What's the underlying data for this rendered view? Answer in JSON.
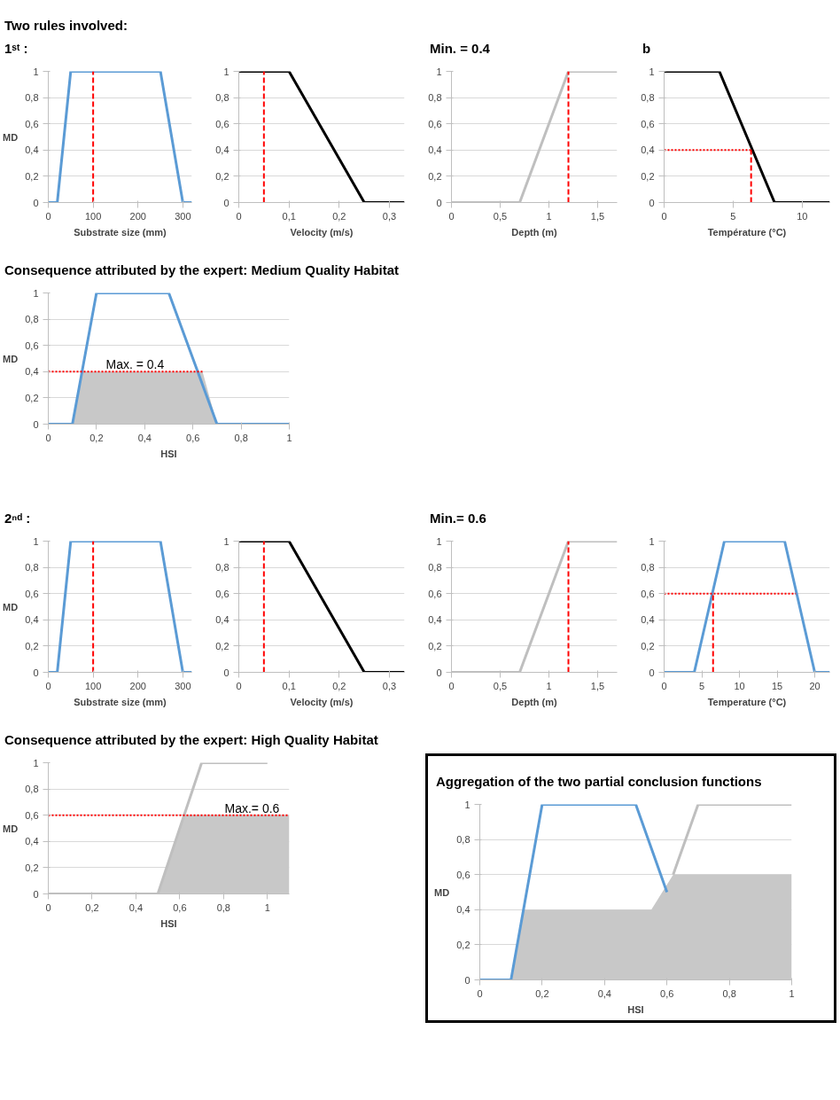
{
  "chart_data": [
    {
      "type": "line",
      "annotations": [
        "Two rules involved:",
        "1ˢᵗ :"
      ],
      "xlabel": "Substrate size (mm)",
      "ylabel": "MD",
      "grid": "y",
      "xlim": [
        0,
        320
      ],
      "ylim": [
        0,
        1
      ],
      "xticks": [
        0,
        100,
        200,
        300
      ],
      "yticks": [
        0,
        {
          "value": 0.2,
          "label": "0,2"
        },
        {
          "value": 0.4,
          "label": "0,4"
        },
        {
          "value": 0.6,
          "label": "0,6"
        },
        {
          "value": 0.8,
          "label": "0,8"
        },
        1
      ],
      "series": [
        {
          "color": "#5b9bd5",
          "x": [
            0,
            20,
            50,
            250,
            300,
            320
          ],
          "values": [
            0,
            0,
            1,
            1,
            0,
            0
          ]
        },
        {
          "color": "#ff0000",
          "line_style": "dashed",
          "x": [
            100,
            100
          ],
          "values": [
            0,
            1
          ]
        }
      ]
    },
    {
      "type": "line",
      "xlabel": "Velocity (m/s)",
      "grid": "y",
      "xlim": [
        0,
        0.33
      ],
      "ylim": [
        0,
        1
      ],
      "xticks": [
        0,
        {
          "value": 0.1,
          "label": "0,1"
        },
        {
          "value": 0.2,
          "label": "0,2"
        },
        {
          "value": 0.3,
          "label": "0,3"
        }
      ],
      "yticks": [
        0,
        {
          "value": 0.2,
          "label": "0,2"
        },
        {
          "value": 0.4,
          "label": "0,4"
        },
        {
          "value": 0.6,
          "label": "0,6"
        },
        {
          "value": 0.8,
          "label": "0,8"
        },
        1
      ],
      "series": [
        {
          "color": "#000000",
          "x": [
            0,
            0.1,
            0.25,
            0.33
          ],
          "values": [
            1,
            1,
            0,
            0
          ]
        },
        {
          "color": "#ff0000",
          "line_style": "dashed",
          "x": [
            0.05,
            0.05
          ],
          "values": [
            0,
            1
          ]
        }
      ]
    },
    {
      "type": "line",
      "annotations": [
        "Min. = 0.4"
      ],
      "xlabel": "Depth (m)",
      "grid": "y",
      "xlim": [
        0,
        1.7
      ],
      "ylim": [
        0,
        1
      ],
      "xticks": [
        0,
        {
          "value": 0.5,
          "label": "0,5"
        },
        1,
        {
          "value": 1.5,
          "label": "1,5"
        }
      ],
      "yticks": [
        0,
        {
          "value": 0.2,
          "label": "0,2"
        },
        {
          "value": 0.4,
          "label": "0,4"
        },
        {
          "value": 0.6,
          "label": "0,6"
        },
        {
          "value": 0.8,
          "label": "0,8"
        },
        1
      ],
      "series": [
        {
          "color": "#bfbfbf",
          "x": [
            0,
            0.7,
            1.2,
            1.7
          ],
          "values": [
            0,
            0,
            1,
            1
          ]
        },
        {
          "color": "#ff0000",
          "line_style": "dashed",
          "x": [
            1.2,
            1.2
          ],
          "values": [
            0,
            1
          ]
        }
      ]
    },
    {
      "type": "line",
      "annotations": [
        "b"
      ],
      "xlabel": "Température (°C)",
      "grid": "y",
      "xlim": [
        0,
        12
      ],
      "ylim": [
        0,
        1
      ],
      "xticks": [
        0,
        5,
        10
      ],
      "yticks": [
        0,
        {
          "value": 0.2,
          "label": "0,2"
        },
        {
          "value": 0.4,
          "label": "0,4"
        },
        {
          "value": 0.6,
          "label": "0,6"
        },
        {
          "value": 0.8,
          "label": "0,8"
        },
        1
      ],
      "series": [
        {
          "color": "#000000",
          "x": [
            0,
            4,
            8,
            12
          ],
          "values": [
            1,
            1,
            0,
            0
          ]
        },
        {
          "color": "#ff0000",
          "line_style": "dotted",
          "x": [
            0,
            6.3
          ],
          "values": [
            0.4,
            0.4
          ]
        },
        {
          "color": "#ff0000",
          "line_style": "dashed",
          "x": [
            6.3,
            6.3
          ],
          "values": [
            0,
            0.4
          ]
        }
      ]
    },
    {
      "type": "line",
      "title": "Consequence attributed by the expert: Medium Quality Habitat",
      "annotations": [
        {
          "text": "Max. = 0.4",
          "x": 0.36,
          "y": 0.4
        }
      ],
      "xlabel": "HSI",
      "ylabel": "MD",
      "grid": "y",
      "xlim": [
        0,
        1
      ],
      "ylim": [
        0,
        1
      ],
      "xticks": [
        0,
        {
          "value": 0.2,
          "label": "0,2"
        },
        {
          "value": 0.4,
          "label": "0,4"
        },
        {
          "value": 0.6,
          "label": "0,6"
        },
        {
          "value": 0.8,
          "label": "0,8"
        },
        1
      ],
      "yticks": [
        0,
        {
          "value": 0.2,
          "label": "0,2"
        },
        {
          "value": 0.4,
          "label": "0,4"
        },
        {
          "value": 0.6,
          "label": "0,6"
        },
        {
          "value": 0.8,
          "label": "0,8"
        },
        1
      ],
      "series": [
        {
          "type": "area",
          "color": "#c8c8c8",
          "x": [
            0.1,
            0.14,
            0.64,
            0.7
          ],
          "values": [
            0,
            0.4,
            0.4,
            0
          ]
        },
        {
          "color": "#5b9bd5",
          "x": [
            0,
            0.1,
            0.2,
            0.5,
            0.7,
            1
          ],
          "values": [
            0,
            0,
            1,
            1,
            0,
            0
          ]
        },
        {
          "color": "#ff0000",
          "line_style": "dotted",
          "x": [
            0,
            0.64
          ],
          "values": [
            0.4,
            0.4
          ]
        }
      ]
    },
    {
      "type": "line",
      "annotations": [
        "2ⁿᵈ :"
      ],
      "xlabel": "Substrate size (mm)",
      "ylabel": "MD",
      "grid": "y",
      "xlim": [
        0,
        320
      ],
      "ylim": [
        0,
        1
      ],
      "xticks": [
        0,
        100,
        200,
        300
      ],
      "yticks": [
        0,
        {
          "value": 0.2,
          "label": "0,2"
        },
        {
          "value": 0.4,
          "label": "0,4"
        },
        {
          "value": 0.6,
          "label": "0,6"
        },
        {
          "value": 0.8,
          "label": "0,8"
        },
        1
      ],
      "series": [
        {
          "color": "#5b9bd5",
          "x": [
            0,
            20,
            50,
            250,
            300,
            320
          ],
          "values": [
            0,
            0,
            1,
            1,
            0,
            0
          ]
        },
        {
          "color": "#ff0000",
          "line_style": "dashed",
          "x": [
            100,
            100
          ],
          "values": [
            0,
            1
          ]
        }
      ]
    },
    {
      "type": "line",
      "xlabel": "Velocity (m/s)",
      "grid": "y",
      "xlim": [
        0,
        0.33
      ],
      "ylim": [
        0,
        1
      ],
      "xticks": [
        0,
        {
          "value": 0.1,
          "label": "0,1"
        },
        {
          "value": 0.2,
          "label": "0,2"
        },
        {
          "value": 0.3,
          "label": "0,3"
        }
      ],
      "yticks": [
        0,
        {
          "value": 0.2,
          "label": "0,2"
        },
        {
          "value": 0.4,
          "label": "0,4"
        },
        {
          "value": 0.6,
          "label": "0,6"
        },
        {
          "value": 0.8,
          "label": "0,8"
        },
        1
      ],
      "series": [
        {
          "color": "#000000",
          "x": [
            0,
            0.1,
            0.25,
            0.33
          ],
          "values": [
            1,
            1,
            0,
            0
          ]
        },
        {
          "color": "#ff0000",
          "line_style": "dashed",
          "x": [
            0.05,
            0.05
          ],
          "values": [
            0,
            1
          ]
        }
      ]
    },
    {
      "type": "line",
      "annotations": [
        "Min.= 0.6"
      ],
      "xlabel": "Depth (m)",
      "grid": "y",
      "xlim": [
        0,
        1.7
      ],
      "ylim": [
        0,
        1
      ],
      "xticks": [
        0,
        {
          "value": 0.5,
          "label": "0,5"
        },
        1,
        {
          "value": 1.5,
          "label": "1,5"
        }
      ],
      "yticks": [
        0,
        {
          "value": 0.2,
          "label": "0,2"
        },
        {
          "value": 0.4,
          "label": "0,4"
        },
        {
          "value": 0.6,
          "label": "0,6"
        },
        {
          "value": 0.8,
          "label": "0,8"
        },
        1
      ],
      "series": [
        {
          "color": "#bfbfbf",
          "x": [
            0,
            0.7,
            1.2,
            1.7
          ],
          "values": [
            0,
            0,
            1,
            1
          ]
        },
        {
          "color": "#ff0000",
          "line_style": "dashed",
          "x": [
            1.2,
            1.2
          ],
          "values": [
            0,
            1
          ]
        }
      ]
    },
    {
      "type": "line",
      "xlabel": "Temperature (°C)",
      "grid": "y",
      "xlim": [
        0,
        22
      ],
      "ylim": [
        0,
        1
      ],
      "xticks": [
        0,
        5,
        10,
        15,
        20
      ],
      "yticks": [
        0,
        {
          "value": 0.2,
          "label": "0,2"
        },
        {
          "value": 0.4,
          "label": "0,4"
        },
        {
          "value": 0.6,
          "label": "0,6"
        },
        {
          "value": 0.8,
          "label": "0,8"
        },
        1
      ],
      "series": [
        {
          "color": "#5b9bd5",
          "x": [
            0,
            4,
            8,
            16,
            20,
            22
          ],
          "values": [
            0,
            0,
            1,
            1,
            0,
            0
          ]
        },
        {
          "color": "#ff0000",
          "line_style": "dotted",
          "x": [
            0,
            17.5
          ],
          "values": [
            0.6,
            0.6
          ]
        },
        {
          "color": "#ff0000",
          "line_style": "dashed",
          "x": [
            6.5,
            6.5
          ],
          "values": [
            0,
            0.6
          ]
        }
      ]
    },
    {
      "type": "line",
      "title": "Consequence attributed by the expert: High Quality Habitat",
      "annotations": [
        {
          "text": "Max.= 0.6",
          "x": 0.93,
          "y": 0.6
        }
      ],
      "xlabel": "HSI",
      "ylabel": "MD",
      "grid": "y",
      "xlim": [
        0,
        1.1
      ],
      "ylim": [
        0,
        1
      ],
      "xticks": [
        0,
        {
          "value": 0.2,
          "label": "0,2"
        },
        {
          "value": 0.4,
          "label": "0,4"
        },
        {
          "value": 0.6,
          "label": "0,6"
        },
        {
          "value": 0.8,
          "label": "0,8"
        },
        1
      ],
      "yticks": [
        0,
        {
          "value": 0.2,
          "label": "0,2"
        },
        {
          "value": 0.4,
          "label": "0,4"
        },
        {
          "value": 0.6,
          "label": "0,6"
        },
        {
          "value": 0.8,
          "label": "0,8"
        },
        1
      ],
      "series": [
        {
          "type": "area",
          "color": "#c8c8c8",
          "x": [
            0.5,
            0.62,
            1.1
          ],
          "values": [
            0,
            0.6,
            0.6
          ]
        },
        {
          "color": "#bfbfbf",
          "x": [
            0,
            0.5,
            0.7,
            1
          ],
          "values": [
            0,
            0,
            1,
            1
          ]
        },
        {
          "color": "#ff0000",
          "line_style": "dotted",
          "x": [
            0,
            1.1
          ],
          "values": [
            0.6,
            0.6
          ]
        }
      ]
    },
    {
      "type": "line",
      "title": "Aggregation of the two partial conclusion functions",
      "xlabel": "HSI",
      "ylabel": "MD",
      "grid": "y",
      "xlim": [
        0,
        1
      ],
      "ylim": [
        0,
        1
      ],
      "xticks": [
        0,
        {
          "value": 0.2,
          "label": "0,2"
        },
        {
          "value": 0.4,
          "label": "0,4"
        },
        {
          "value": 0.6,
          "label": "0,6"
        },
        {
          "value": 0.8,
          "label": "0,8"
        },
        1
      ],
      "yticks": [
        0,
        {
          "value": 0.2,
          "label": "0,2"
        },
        {
          "value": 0.4,
          "label": "0,4"
        },
        {
          "value": 0.6,
          "label": "0,6"
        },
        {
          "value": 0.8,
          "label": "0,8"
        },
        1
      ],
      "series": [
        {
          "type": "area",
          "color": "#c8c8c8",
          "x": [
            0.1,
            0.14,
            0.55,
            0.62,
            1
          ],
          "values": [
            0,
            0.4,
            0.4,
            0.6,
            0.6
          ]
        },
        {
          "color": "#5b9bd5",
          "x": [
            0,
            0.1,
            0.2,
            0.5,
            0.6
          ],
          "values": [
            0,
            0,
            1,
            1,
            0.5
          ]
        },
        {
          "color": "#bfbfbf",
          "x": [
            0.62,
            0.7,
            1
          ],
          "values": [
            0.6,
            1,
            1
          ]
        }
      ]
    }
  ]
}
